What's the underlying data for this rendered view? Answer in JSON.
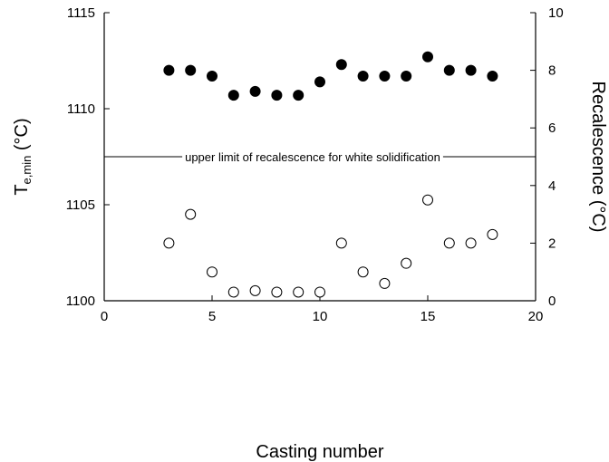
{
  "chart_data": {
    "type": "scatter",
    "title": "",
    "xlabel": "Casting number",
    "ylabel_left": {
      "main": "T",
      "sub": "e,min",
      "unit": " (°C)"
    },
    "ylabel_right": "Recalescence (°C)",
    "xlim": [
      0,
      20
    ],
    "ylim_left": [
      1100,
      1115
    ],
    "ylim_right": [
      0,
      10
    ],
    "x_ticks": [
      "0",
      "5",
      "10",
      "15",
      "20"
    ],
    "y_left_ticks": [
      "1100",
      "1105",
      "1110",
      "1115"
    ],
    "y_right_ticks": [
      "0",
      "2",
      "4",
      "6",
      "8",
      "10"
    ],
    "grid": false,
    "series": [
      {
        "marker": "filled-circle",
        "axis": "left",
        "x": [
          3,
          4,
          5,
          6,
          7,
          8,
          9,
          10,
          11,
          12,
          13,
          14,
          15,
          16,
          17,
          18
        ],
        "y": [
          1112.0,
          1112.0,
          1111.7,
          1110.7,
          1110.9,
          1110.7,
          1110.7,
          1111.4,
          1112.3,
          1111.7,
          1111.7,
          1111.7,
          1112.7,
          1112.0,
          1112.0,
          1111.7
        ]
      },
      {
        "marker": "open-circle",
        "axis": "right",
        "x": [
          3,
          4,
          5,
          6,
          7,
          8,
          9,
          10,
          11,
          12,
          13,
          14,
          15,
          16,
          17,
          18
        ],
        "y": [
          2.0,
          3.0,
          1.0,
          0.3,
          0.35,
          0.3,
          0.3,
          0.3,
          2.0,
          1.0,
          0.6,
          1.3,
          3.5,
          2.0,
          2.0,
          2.3
        ]
      }
    ],
    "reference_line": {
      "axis": "right",
      "y": 5,
      "label": "upper limit of recalescence for white solidification"
    }
  }
}
